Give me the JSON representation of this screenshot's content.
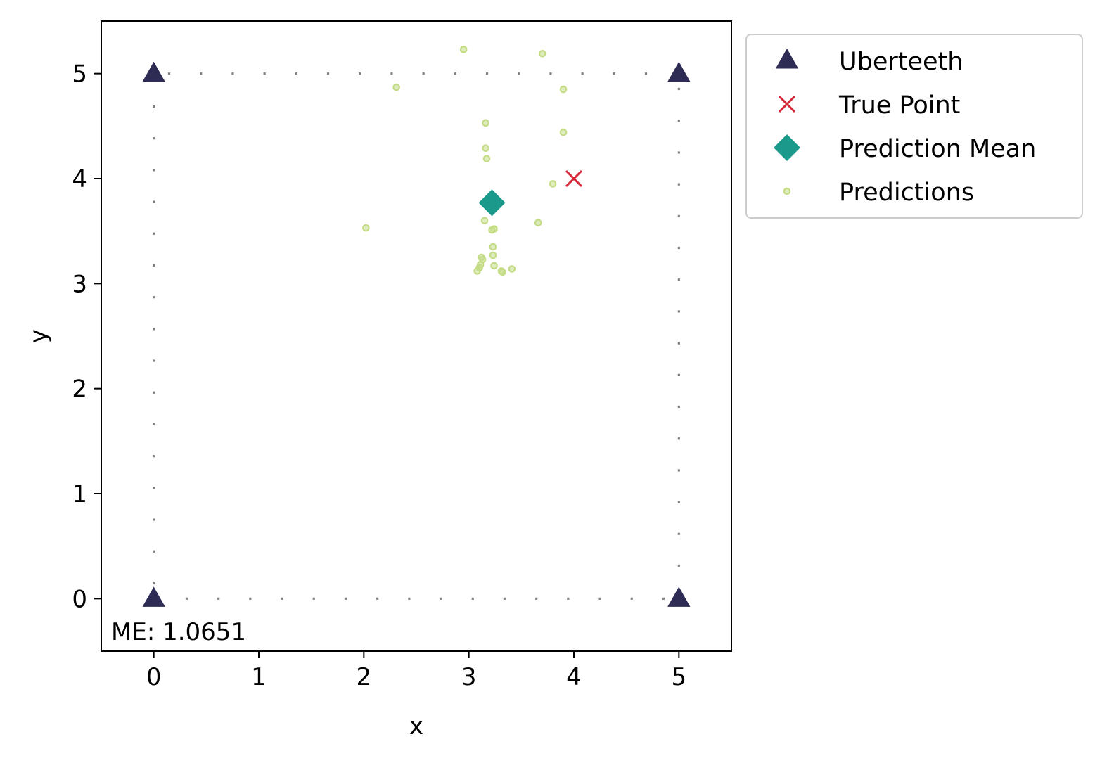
{
  "chart_data": {
    "type": "scatter",
    "xlabel": "x",
    "ylabel": "y",
    "xlim": [
      -0.5,
      5.5
    ],
    "ylim": [
      -0.5,
      5.5
    ],
    "xticks": [
      "0",
      "1",
      "2",
      "3",
      "4",
      "5"
    ],
    "yticks": [
      "0",
      "1",
      "2",
      "3",
      "4",
      "5"
    ],
    "grid": false,
    "legend_position": "outside-top-right",
    "annotation": "ME: 1.0651",
    "boundary": {
      "style": "dotted",
      "color": "#808080",
      "corners": [
        [
          0,
          0
        ],
        [
          5,
          0
        ],
        [
          5,
          5
        ],
        [
          0,
          5
        ]
      ]
    },
    "series": [
      {
        "name": "Uberteeth",
        "marker": "triangle",
        "color": "#2e2b55",
        "points": [
          [
            0,
            5
          ],
          [
            5,
            5
          ],
          [
            0,
            0
          ],
          [
            5,
            0
          ]
        ]
      },
      {
        "name": "True Point",
        "marker": "x",
        "color": "#d62839",
        "points": [
          [
            4.0,
            4.0
          ]
        ]
      },
      {
        "name": "Prediction Mean",
        "marker": "diamond",
        "color": "#1b998b",
        "points": [
          [
            3.22,
            3.77
          ]
        ]
      },
      {
        "name": "Predictions",
        "marker": "dot",
        "color": "#c5dc86",
        "points": [
          [
            2.95,
            5.23
          ],
          [
            3.7,
            5.19
          ],
          [
            2.31,
            4.87
          ],
          [
            3.9,
            4.85
          ],
          [
            3.16,
            4.53
          ],
          [
            3.9,
            4.44
          ],
          [
            3.16,
            4.29
          ],
          [
            3.17,
            4.19
          ],
          [
            3.8,
            3.95
          ],
          [
            3.66,
            3.58
          ],
          [
            3.15,
            3.6
          ],
          [
            2.02,
            3.53
          ],
          [
            3.22,
            3.51
          ],
          [
            3.24,
            3.52
          ],
          [
            3.23,
            3.35
          ],
          [
            3.23,
            3.27
          ],
          [
            3.12,
            3.25
          ],
          [
            3.13,
            3.23
          ],
          [
            3.11,
            3.18
          ],
          [
            3.24,
            3.17
          ],
          [
            3.1,
            3.15
          ],
          [
            3.08,
            3.12
          ],
          [
            3.31,
            3.12
          ],
          [
            3.32,
            3.11
          ],
          [
            3.41,
            3.14
          ]
        ]
      }
    ]
  }
}
